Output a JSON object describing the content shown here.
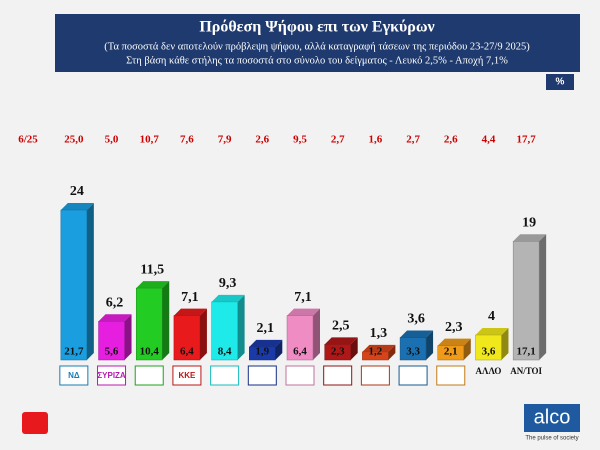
{
  "chart_data": {
    "type": "bar",
    "title": "Πρόθεση Ψήφου επι των Εγκύρων",
    "subtitle": "(Τα ποσοστά δεν αποτελούν πρόβλεψη ψήφου, αλλά καταγραφή τάσεων της περιόδου  23-27/9 2025)",
    "note": "Στη βάση κάθε στήλης τα ποσοστά στο σύνολο του δείγματος - Λευκό 2,5% - Αποχή 7,1%",
    "unit": "%",
    "previous_label": "6/25",
    "categories": [
      "ΝΔ",
      "ΣΥΡΙΖΑ",
      null,
      "ΚΚΕ",
      null,
      null,
      null,
      null,
      null,
      null,
      null,
      "ΑΛΛΟ",
      "ΑΝ/ΤΟΙ"
    ],
    "values": [
      24,
      6.2,
      11.5,
      7.1,
      9.3,
      2.1,
      7.1,
      2.5,
      1.3,
      3.6,
      2.3,
      4,
      19
    ],
    "value_labels": [
      "24",
      "6,2",
      "11,5",
      "7,1",
      "9,3",
      "2,1",
      "7,1",
      "2,5",
      "1,3",
      "3,6",
      "2,3",
      "4",
      "19"
    ],
    "inside_values": [
      21.7,
      5.6,
      10.4,
      6.4,
      8.4,
      1.9,
      6.4,
      2.3,
      1.2,
      3.3,
      2.1,
      3.6,
      17.1
    ],
    "inside_labels": [
      "21,7",
      "5,6",
      "10,4",
      "6,4",
      "8,4",
      "1,9",
      "6,4",
      "2,3",
      "1,2",
      "3,3",
      "2,1",
      "3,6",
      "17,1"
    ],
    "previous_values": [
      25.0,
      5.0,
      10.7,
      7.6,
      7.9,
      2.6,
      9.5,
      2.7,
      1.6,
      2.7,
      2.6,
      4.4,
      17.7
    ],
    "previous_labels": [
      "25,0",
      "5,0",
      "10,7",
      "7,6",
      "7,9",
      "2,6",
      "9,5",
      "2,7",
      "1,6",
      "2,7",
      "2,6",
      "4,4",
      "17,7"
    ],
    "colors": [
      "#1a9ee0",
      "#e61ee0",
      "#22cc22",
      "#e81a1c",
      "#1eeaea",
      "#1a3aa8",
      "#f08cc4",
      "#b01818",
      "#d8441a",
      "#1a70b0",
      "#f09a1a",
      "#f0e81a",
      "#b4b4b4"
    ],
    "footer": {
      "brand": "alco",
      "tagline": "The pulse of society"
    }
  }
}
